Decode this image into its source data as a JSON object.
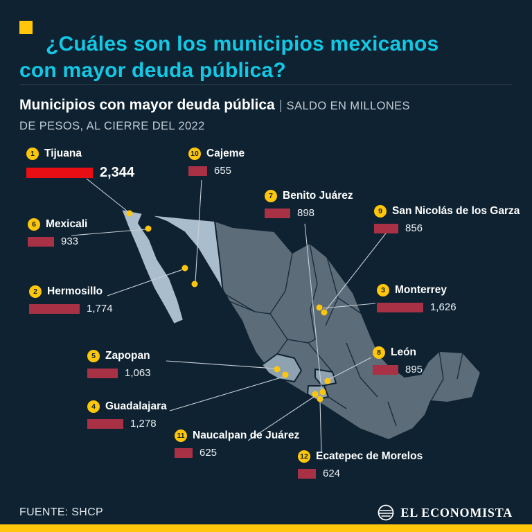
{
  "page": {
    "title_line1": "¿Cuáles son los municipios mexicanos",
    "title_line2": "con mayor deuda pública?",
    "subtitle_bold": "Municipios con mayor deuda pública",
    "subtitle_sep": "|",
    "subtitle_caps_line1": "SALDO EN MILLONES",
    "subtitle_caps_line2": "DE PESOS, AL CIERRE DEL 2022",
    "source": "FUENTE: SHCP",
    "brand": "EL ECONOMISTA"
  },
  "colors": {
    "background": "#0e2231",
    "title_cyan": "#13c8e4",
    "accent_yellow": "#ffc60a",
    "bar_crimson": "#a93145",
    "bar_top_red": "#e80e13",
    "map_land": "#5d6c79",
    "map_highlight": "#a9bdcc",
    "text_gray": "#c3cdd4"
  },
  "chart_data": {
    "type": "bar",
    "title": "Municipios con mayor deuda pública",
    "value_units": "Saldo en millones de pesos, al cierre del 2022",
    "legend_position": "callouts-on-map",
    "items": [
      {
        "rank": "1",
        "name": "Tijuana",
        "value": 2344,
        "value_display": "2,344"
      },
      {
        "rank": "2",
        "name": "Hermosillo",
        "value": 1774,
        "value_display": "1,774"
      },
      {
        "rank": "3",
        "name": "Monterrey",
        "value": 1626,
        "value_display": "1,626"
      },
      {
        "rank": "4",
        "name": "Guadalajara",
        "value": 1278,
        "value_display": "1,278"
      },
      {
        "rank": "5",
        "name": "Zapopan",
        "value": 1063,
        "value_display": "1,063"
      },
      {
        "rank": "6",
        "name": "Mexicali",
        "value": 933,
        "value_display": "933"
      },
      {
        "rank": "7",
        "name": "Benito Juárez",
        "value": 898,
        "value_display": "898"
      },
      {
        "rank": "8",
        "name": "León",
        "value": 895,
        "value_display": "895"
      },
      {
        "rank": "9",
        "name": "San Nicolás de los Garza",
        "value": 856,
        "value_display": "856"
      },
      {
        "rank": "10",
        "name": "Cajeme",
        "value": 655,
        "value_display": "655"
      },
      {
        "rank": "11",
        "name": "Naucalpan de Juárez",
        "value": 625,
        "value_display": "625"
      },
      {
        "rank": "12",
        "name": "Ecatepec de Morelos",
        "value": 624,
        "value_display": "624"
      }
    ]
  }
}
